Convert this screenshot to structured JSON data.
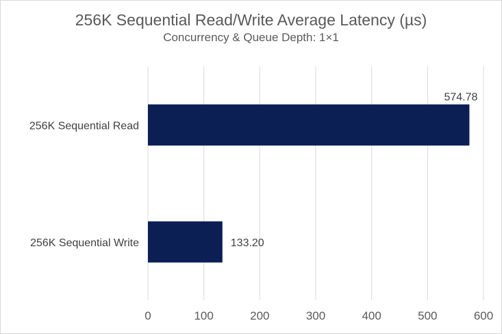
{
  "chart_data": {
    "type": "bar",
    "orientation": "horizontal",
    "title": "256K Sequential Read/Write Average Latency (µs)",
    "subtitle": "Concurrency & Queue Depth: 1×1",
    "categories": [
      "256K Sequential Read",
      "256K Sequential Write"
    ],
    "values": [
      574.78,
      133.2
    ],
    "value_labels": [
      "574.78",
      "133.20"
    ],
    "xlim": [
      0,
      600
    ],
    "xticks": [
      0,
      100,
      200,
      300,
      400,
      500,
      600
    ],
    "xtick_labels": [
      "0",
      "100",
      "200",
      "300",
      "400",
      "500",
      "600"
    ],
    "grid": "vertical",
    "bar_color": "#0b1f55",
    "grid_color": "#d9d9d9"
  }
}
